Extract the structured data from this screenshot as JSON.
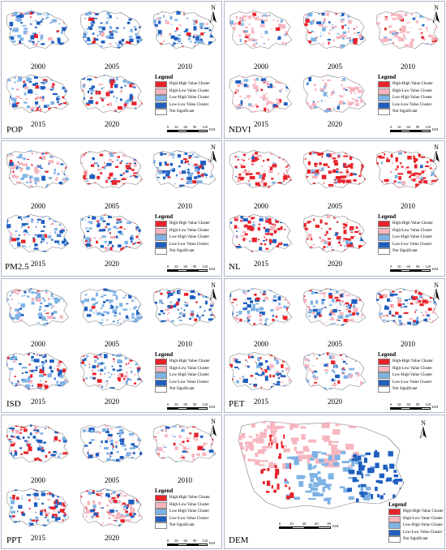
{
  "legend": {
    "title": "Legend",
    "items": [
      {
        "label": "High-High Value Cluster",
        "color": "#e8232a"
      },
      {
        "label": "High-Low Value Cluster",
        "color": "#f7b6bf"
      },
      {
        "label": "Low-High Value Cluster",
        "color": "#7fb2e5"
      },
      {
        "label": "Low-Low Value Cluster",
        "color": "#1f5fc0"
      },
      {
        "label": "Not Significant",
        "color": "#ffffff"
      }
    ]
  },
  "scale": {
    "ticks": [
      "0",
      "30",
      "60",
      "90",
      "120"
    ],
    "unit": "KM"
  },
  "scale_dem": {
    "ticks": [
      "0",
      "20",
      "40",
      "60",
      "80"
    ],
    "unit": "KM"
  },
  "north_label": "N",
  "years": [
    "2000",
    "2005",
    "2010",
    "2015",
    "2020"
  ],
  "panels": [
    {
      "variable": "POP"
    },
    {
      "variable": "NDVI"
    },
    {
      "variable": "PM2.5"
    },
    {
      "variable": "NL"
    },
    {
      "variable": "ISD"
    },
    {
      "variable": "PET"
    },
    {
      "variable": "PPT"
    },
    {
      "variable": "DEM"
    }
  ]
}
